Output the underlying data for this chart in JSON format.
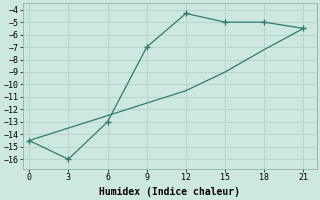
{
  "xlabel": "Humidex (Indice chaleur)",
  "bg_color": "#cce8e0",
  "line_color": "#2e7d6e",
  "grid_color": "#b8d4cc",
  "series1_x": [
    0,
    3,
    6,
    9,
    12,
    15,
    18,
    21
  ],
  "series1_y": [
    -14.5,
    -16.0,
    -13.0,
    -7.0,
    -4.3,
    -5.0,
    -5.0,
    -5.5
  ],
  "series2_x": [
    0,
    12,
    15,
    18,
    21
  ],
  "series2_y": [
    -14.5,
    -10.5,
    -9.0,
    -7.2,
    -5.5
  ],
  "xlim": [
    -0.5,
    22
  ],
  "ylim": [
    -16.8,
    -3.5
  ],
  "xticks": [
    0,
    3,
    6,
    9,
    12,
    15,
    18,
    21
  ],
  "yticks": [
    -4,
    -5,
    -6,
    -7,
    -8,
    -9,
    -10,
    -11,
    -12,
    -13,
    -14,
    -15,
    -16
  ]
}
